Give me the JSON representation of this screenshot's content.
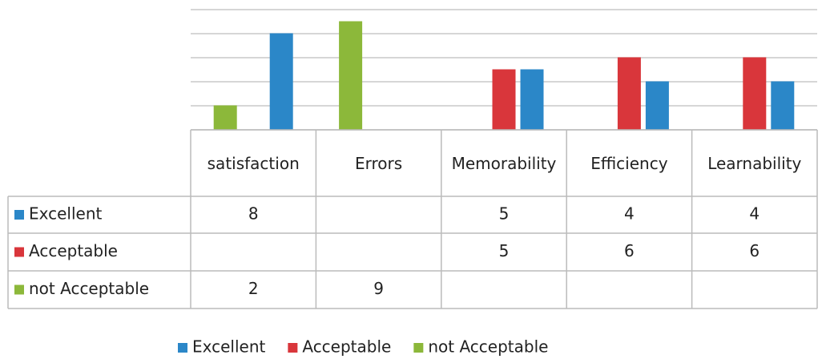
{
  "chart_data": {
    "type": "bar",
    "categories": [
      "satisfaction",
      "Errors",
      "Memorability",
      "Efficiency",
      "Learnability"
    ],
    "series": [
      {
        "name": "Excellent",
        "color": "#2b87c8",
        "values": [
          8,
          null,
          5,
          4,
          4
        ]
      },
      {
        "name": "Acceptable",
        "color": "#d9363b",
        "values": [
          null,
          null,
          5,
          6,
          6
        ]
      },
      {
        "name": "not Acceptable",
        "color": "#8cb83a",
        "values": [
          2,
          9,
          null,
          null,
          null
        ]
      }
    ],
    "ylim": [
      0,
      10
    ],
    "yticks": [
      0,
      2,
      4,
      6,
      8,
      10
    ],
    "grid": true,
    "legend": "bottom"
  }
}
